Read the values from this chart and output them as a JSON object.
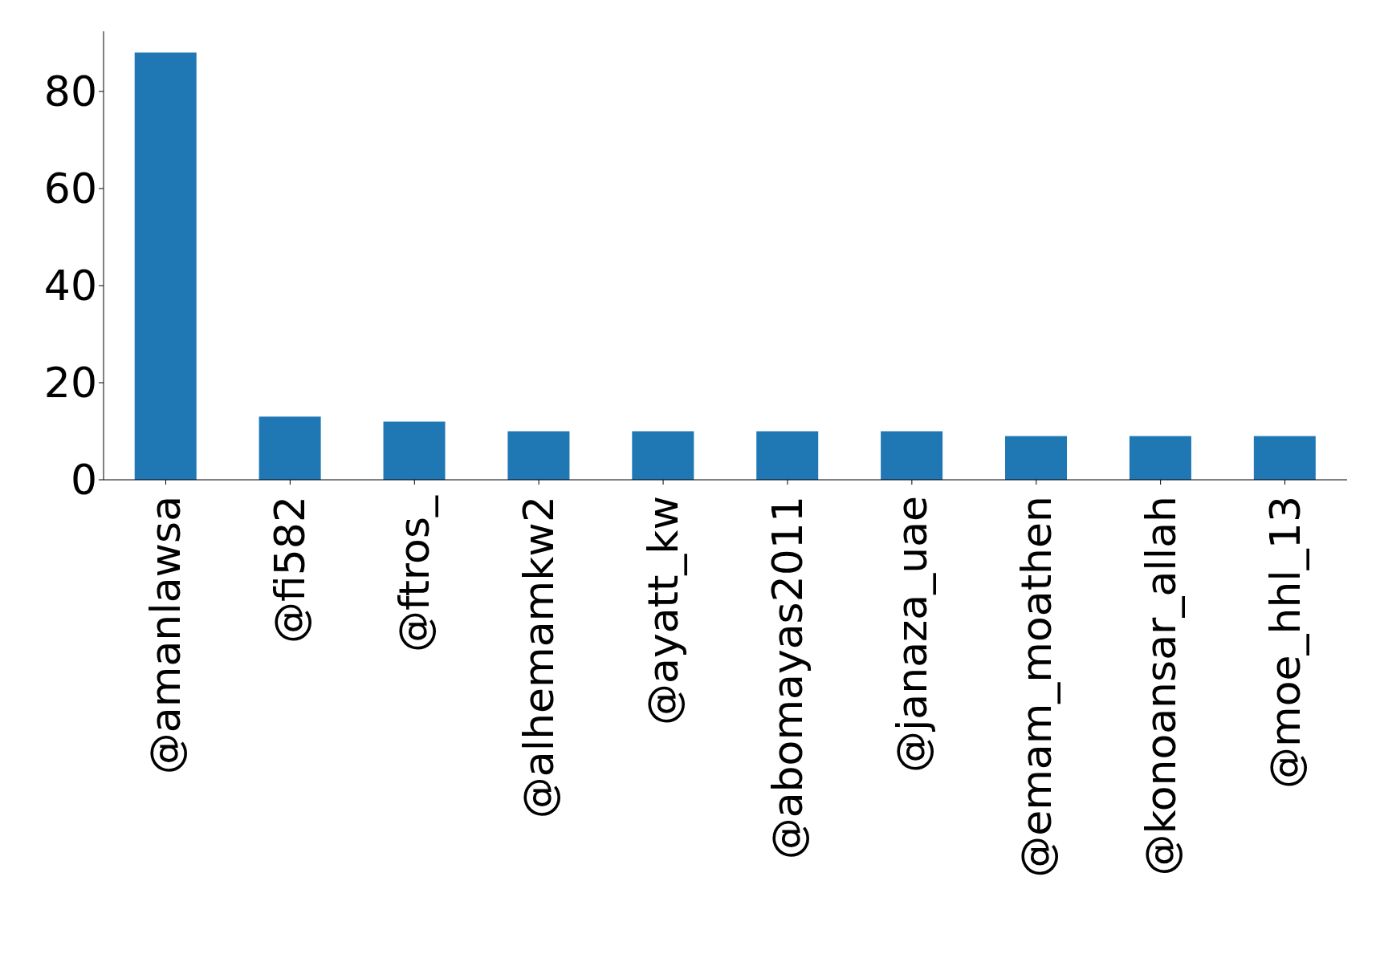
{
  "chart_data": {
    "type": "bar",
    "categories": [
      "@amanlawsa",
      "@fi582",
      "@ftros_",
      "@alhemamkw2",
      "@ayatt_kw",
      "@abomayas2011",
      "@janaza_uae",
      "@emam_moathen",
      "@konoansar_allah",
      "@moe_hhl_13"
    ],
    "values": [
      88,
      13,
      12,
      10,
      10,
      10,
      10,
      9,
      9,
      9
    ],
    "color": "#1f77b4",
    "ylim": [
      0,
      92.4
    ],
    "yticks": [
      0,
      20,
      40,
      60,
      80
    ],
    "grid": false,
    "legend": false
  }
}
